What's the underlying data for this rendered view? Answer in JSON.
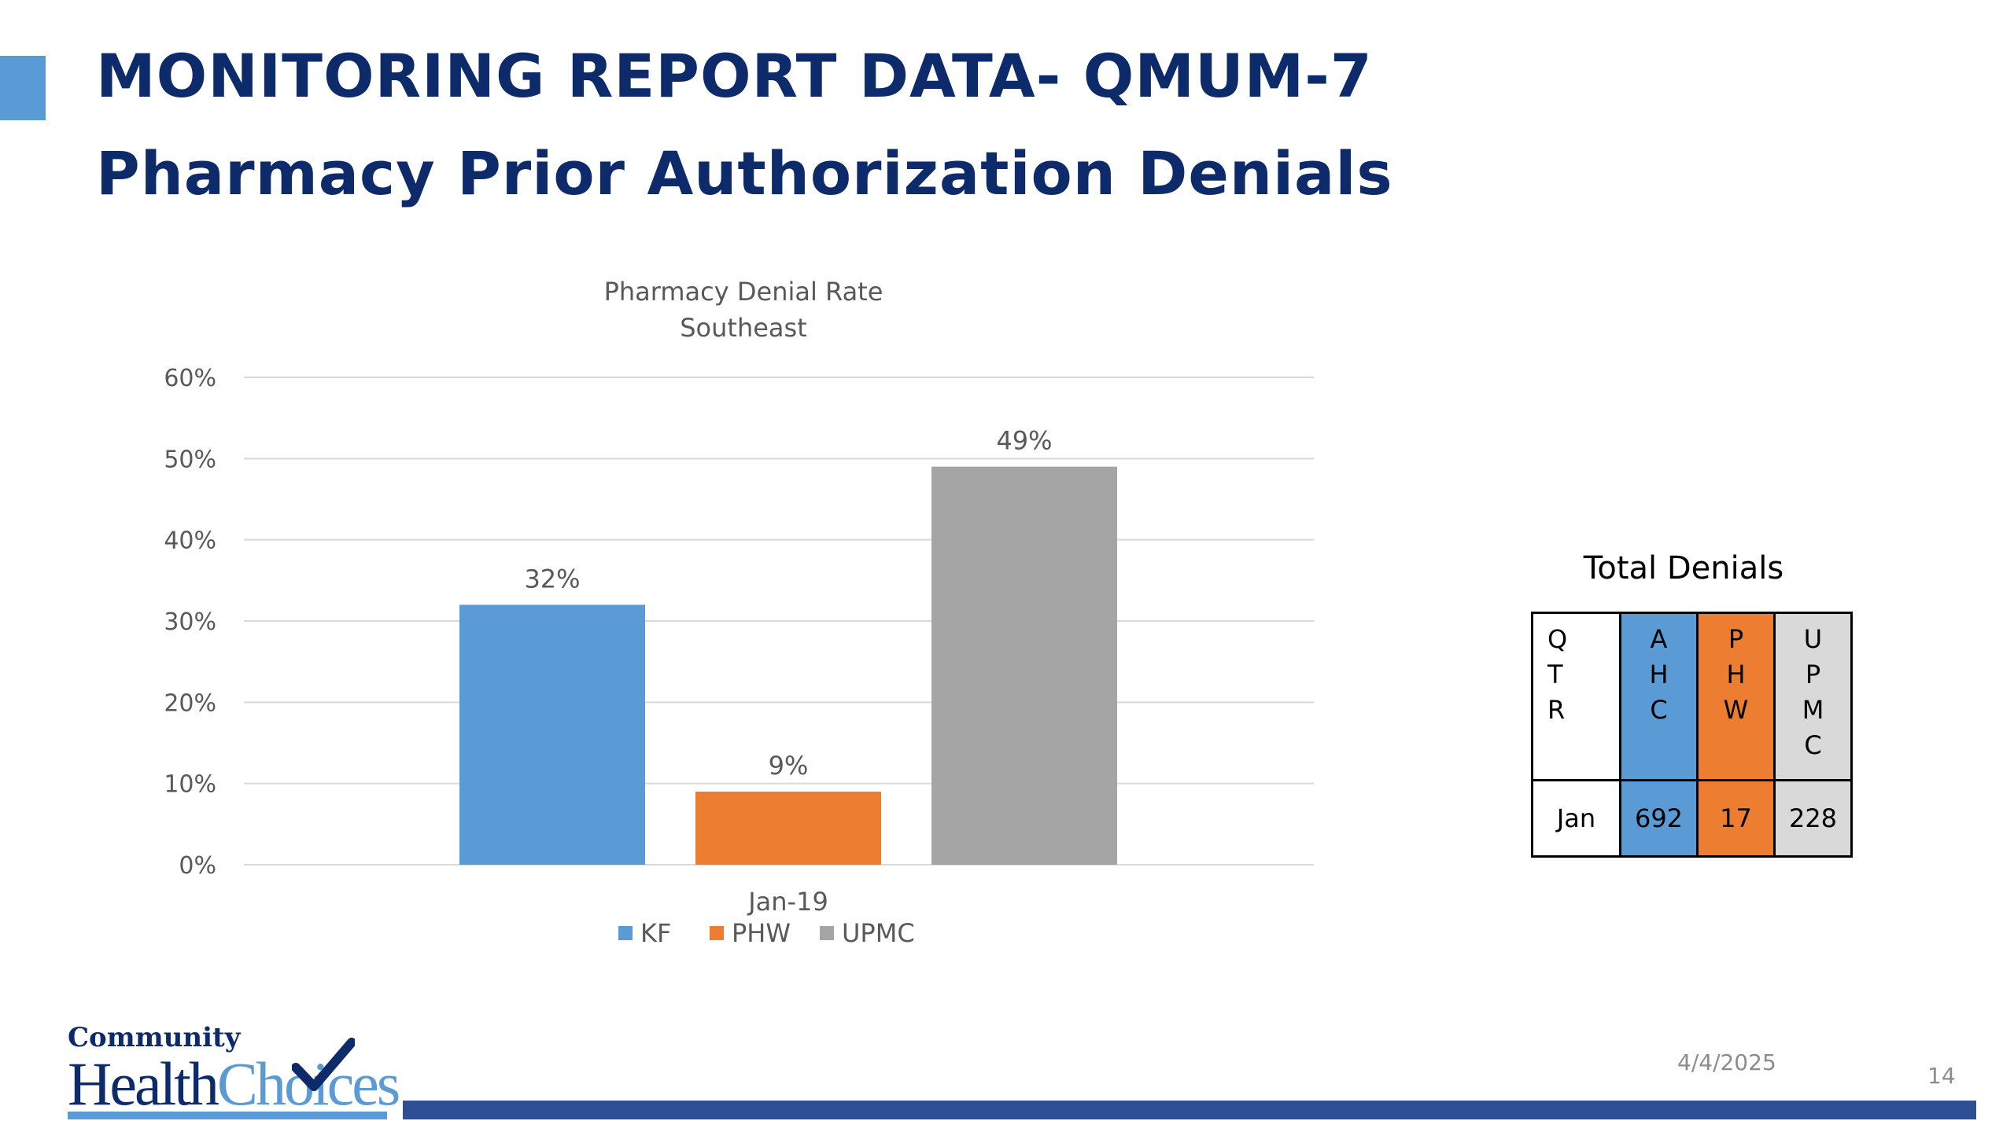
{
  "header": {
    "title_line1": "MONITORING REPORT DATA- QMUM-7",
    "title_line2": "Pharmacy Prior Authorization Denials"
  },
  "chart_data": {
    "type": "bar",
    "title": "Pharmacy Denial Rate",
    "subtitle": "Southeast",
    "categories": [
      "Jan-19"
    ],
    "series": [
      {
        "name": "KF",
        "values": [
          32
        ],
        "label": "32%",
        "color": "#5b9bd5"
      },
      {
        "name": "PHW",
        "values": [
          9
        ],
        "label": "9%",
        "color": "#ed7d31"
      },
      {
        "name": "UPMC",
        "values": [
          49
        ],
        "label": "49%",
        "color": "#a5a5a5"
      }
    ],
    "yticks": [
      "0%",
      "10%",
      "20%",
      "30%",
      "40%",
      "50%",
      "60%"
    ],
    "ylim": [
      0,
      60
    ],
    "grid": true,
    "legend": "bottom"
  },
  "table": {
    "title": "Total Denials",
    "headers": [
      {
        "letters": [
          "Q",
          "T",
          "R"
        ]
      },
      {
        "letters": [
          "A",
          "H",
          "C"
        ],
        "color": "#5b9bd5"
      },
      {
        "letters": [
          "P",
          "H",
          "W"
        ],
        "color": "#ed7d31"
      },
      {
        "letters": [
          "U",
          "P",
          "M",
          "C"
        ],
        "color": "#d9d9d9"
      }
    ],
    "row": [
      "Jan",
      "692",
      "17",
      "228"
    ]
  },
  "footer": {
    "logo_top": "Community",
    "logo_health": "Health",
    "logo_choices": "Choices",
    "date": "4/4/2025",
    "page_number": "14"
  }
}
